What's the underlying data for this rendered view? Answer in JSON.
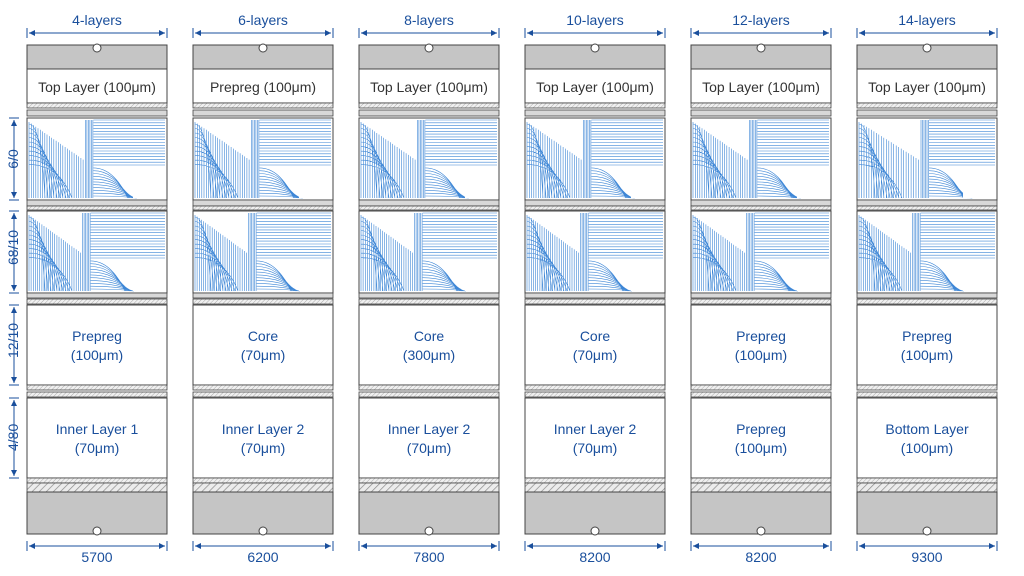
{
  "colors": {
    "accent": "#1a4f9c",
    "trace": "#3d86d6",
    "gray_block": "#c5c5c5",
    "border": "#444444",
    "stripe": "#8a8a8a"
  },
  "side_labels": [
    "6/0",
    "68/10",
    "12/10",
    "4/80"
  ],
  "columns": [
    {
      "title": "4-layers",
      "top_box": "Top Layer (100μm)",
      "mid_box": [
        "Prepreg",
        "(100μm)"
      ],
      "low_box": [
        "Inner Layer 1",
        "(70μm)"
      ],
      "footer": "5700"
    },
    {
      "title": "6-layers",
      "top_box": "Prepreg (100μm)",
      "mid_box": [
        "Core",
        "(70μm)"
      ],
      "low_box": [
        "Inner Layer 2",
        "(70μm)"
      ],
      "footer": "6200"
    },
    {
      "title": "8-layers",
      "top_box": "Top Layer (100μm)",
      "mid_box": [
        "Core",
        "(300μm)"
      ],
      "low_box": [
        "Inner Layer 2",
        "(70μm)"
      ],
      "footer": "7800"
    },
    {
      "title": "10-layers",
      "top_box": "Top Layer (100μm)",
      "mid_box": [
        "Core",
        "(70μm)"
      ],
      "low_box": [
        "Inner Layer 2",
        "(70μm)"
      ],
      "footer": "8200"
    },
    {
      "title": "12-layers",
      "top_box": "Top Layer (100μm)",
      "mid_box": [
        "Prepreg",
        "(100μm)"
      ],
      "low_box": [
        "Prepreg",
        "(100μm)"
      ],
      "footer": "8200"
    },
    {
      "title": "14-layers",
      "top_box": "Top Layer (100μm)",
      "mid_box": [
        "Prepreg",
        "(100μm)"
      ],
      "low_box": [
        "Bottom Layer",
        "(100μm)"
      ],
      "footer": "9300"
    }
  ]
}
